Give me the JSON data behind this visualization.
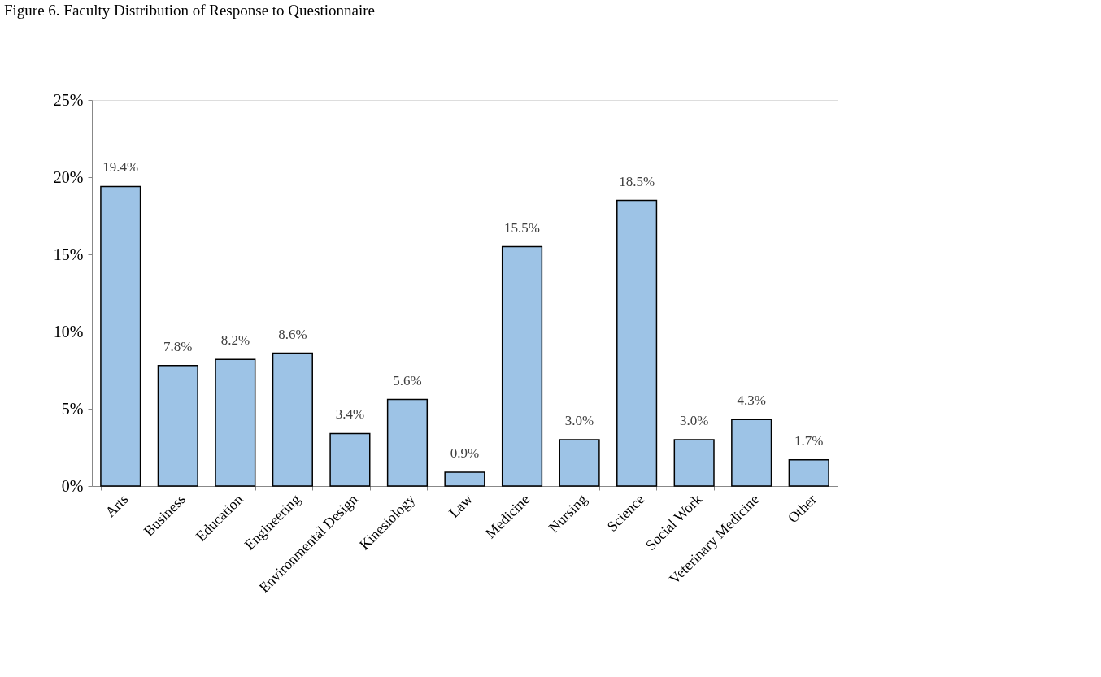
{
  "chart_data": {
    "type": "bar",
    "title": "Figure 6. Faculty Distribution of Response to Questionnaire",
    "categories": [
      "Arts",
      "Business",
      "Education",
      "Engineering",
      "Environmental Design",
      "Kinesiology",
      "Law",
      "Medicine",
      "Nursing",
      "Science",
      "Social Work",
      "Veterinary Medicine",
      "Other"
    ],
    "values": [
      19.4,
      7.8,
      8.2,
      8.6,
      3.4,
      5.6,
      0.9,
      15.5,
      3.0,
      18.5,
      3.0,
      4.3,
      1.7
    ],
    "value_labels": [
      "19.4%",
      "7.8%",
      "8.2%",
      "8.6%",
      "3.4%",
      "5.6%",
      "0.9%",
      "15.5%",
      "3.0%",
      "18.5%",
      "3.0%",
      "4.3%",
      "1.7%"
    ],
    "color": "#9dc3e6",
    "ylim": [
      0,
      25
    ],
    "yticks": [
      {
        "value": 0,
        "label": "0%"
      },
      {
        "value": 5,
        "label": "5%"
      },
      {
        "value": 10,
        "label": "10%"
      },
      {
        "value": 15,
        "label": "15%"
      },
      {
        "value": 20,
        "label": "20%"
      },
      {
        "value": 25,
        "label": "25%"
      }
    ],
    "grid": false
  }
}
